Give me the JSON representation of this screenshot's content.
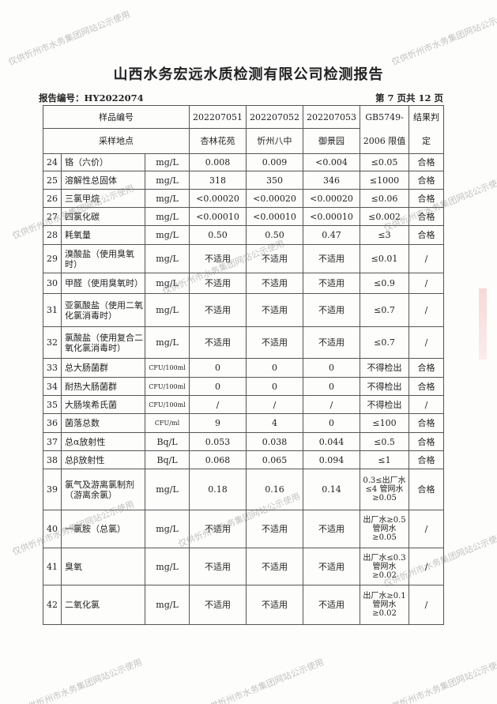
{
  "title": "山西水务宏远水质检测有限公司检测报告",
  "report_no": "报告编号：HY2022074",
  "page_info": "第 7 页共 12 页",
  "watermark": "仅供忻州市水务集团网站公示使用",
  "header": {
    "sample_no_label": "样品编号",
    "location_label": "采样地点",
    "samples": [
      "202207051",
      "202207052",
      "202207053"
    ],
    "locations": [
      "杏林花苑",
      "忻州八中",
      "御景园"
    ],
    "standard_label": "GB5749-2006 限值",
    "result_label": "结果判定"
  },
  "rows": [
    {
      "n": "24",
      "item": "铬（六价）",
      "unit": "mg/L",
      "v": [
        "0.008",
        "0.009",
        "<0.004"
      ],
      "std": "≤0.05",
      "res": "合格"
    },
    {
      "n": "25",
      "item": "溶解性总固体",
      "unit": "mg/L",
      "v": [
        "318",
        "350",
        "346"
      ],
      "std": "≤1000",
      "res": "合格"
    },
    {
      "n": "26",
      "item": "三氯甲烷",
      "unit": "mg/L",
      "v": [
        "<0.00020",
        "<0.00020",
        "<0.00020"
      ],
      "std": "≤0.06",
      "res": "合格"
    },
    {
      "n": "27",
      "item": "四氯化碳",
      "unit": "mg/L",
      "v": [
        "<0.00010",
        "<0.00010",
        "<0.00010"
      ],
      "std": "≤0.002",
      "res": "合格"
    },
    {
      "n": "28",
      "item": "耗氧量",
      "unit": "mg/L",
      "v": [
        "0.50",
        "0.50",
        "0.47"
      ],
      "std": "≤3",
      "res": "合格"
    },
    {
      "n": "29",
      "item": "溴酸盐（使用臭氧时）",
      "unit": "mg/L",
      "v": [
        "不适用",
        "不适用",
        "不适用"
      ],
      "std": "≤0.01",
      "res": "/"
    },
    {
      "n": "30",
      "item": "甲醛（使用臭氧时）",
      "unit": "mg/L",
      "v": [
        "不适用",
        "不适用",
        "不适用"
      ],
      "std": "≤0.9",
      "res": "/"
    },
    {
      "n": "31",
      "item": "亚氯酸盐（使用二氧化氯消毒时）",
      "unit": "mg/L",
      "v": [
        "不适用",
        "不适用",
        "不适用"
      ],
      "std": "≤0.7",
      "res": "/"
    },
    {
      "n": "32",
      "item": "氯酸盐（使用复合二氧化氯消毒时）",
      "unit": "mg/L",
      "v": [
        "不适用",
        "不适用",
        "不适用"
      ],
      "std": "≤0.7",
      "res": "/"
    },
    {
      "n": "33",
      "item": "总大肠菌群",
      "unit": "CFU/100ml",
      "v": [
        "0",
        "0",
        "0"
      ],
      "std": "不得检出",
      "res": "合格"
    },
    {
      "n": "34",
      "item": "耐热大肠菌群",
      "unit": "CFU/100ml",
      "v": [
        "0",
        "0",
        "0"
      ],
      "std": "不得检出",
      "res": "合格"
    },
    {
      "n": "35",
      "item": "大肠埃希氏菌",
      "unit": "CFU/100ml",
      "v": [
        "/",
        "/",
        "/"
      ],
      "std": "不得检出",
      "res": "/"
    },
    {
      "n": "36",
      "item": "菌落总数",
      "unit": "CFU/ml",
      "v": [
        "9",
        "4",
        "0"
      ],
      "std": "≤100",
      "res": "合格"
    },
    {
      "n": "37",
      "item": "总α放射性",
      "unit": "Bq/L",
      "v": [
        "0.053",
        "0.038",
        "0.044"
      ],
      "std": "≤0.5",
      "res": "合格"
    },
    {
      "n": "38",
      "item": "总β放射性",
      "unit": "Bq/L",
      "v": [
        "0.068",
        "0.065",
        "0.094"
      ],
      "std": "≤1",
      "res": "合格"
    },
    {
      "n": "39",
      "item": "氯气及游离氯制剂（游离余氯）",
      "unit": "mg/L",
      "v": [
        "0.18",
        "0.16",
        "0.14"
      ],
      "std": "0.3≤出厂水≤4 管网水≥0.05",
      "res": "合格"
    },
    {
      "n": "40",
      "item": "一氯胺（总氯）",
      "unit": "mg/L",
      "v": [
        "不适用",
        "不适用",
        "不适用"
      ],
      "std": "出厂水≥0.5 管网水≥0.05",
      "res": "/"
    },
    {
      "n": "41",
      "item": "臭氧",
      "unit": "mg/L",
      "v": [
        "不适用",
        "不适用",
        "不适用"
      ],
      "std": "出厂水≤0.3 管网水≥0.02",
      "res": "/"
    },
    {
      "n": "42",
      "item": "二氧化氯",
      "unit": "mg/L",
      "v": [
        "不适用",
        "不适用",
        "不适用"
      ],
      "std": "出厂水≥0.1 管网水≥0.02",
      "res": "/"
    }
  ]
}
